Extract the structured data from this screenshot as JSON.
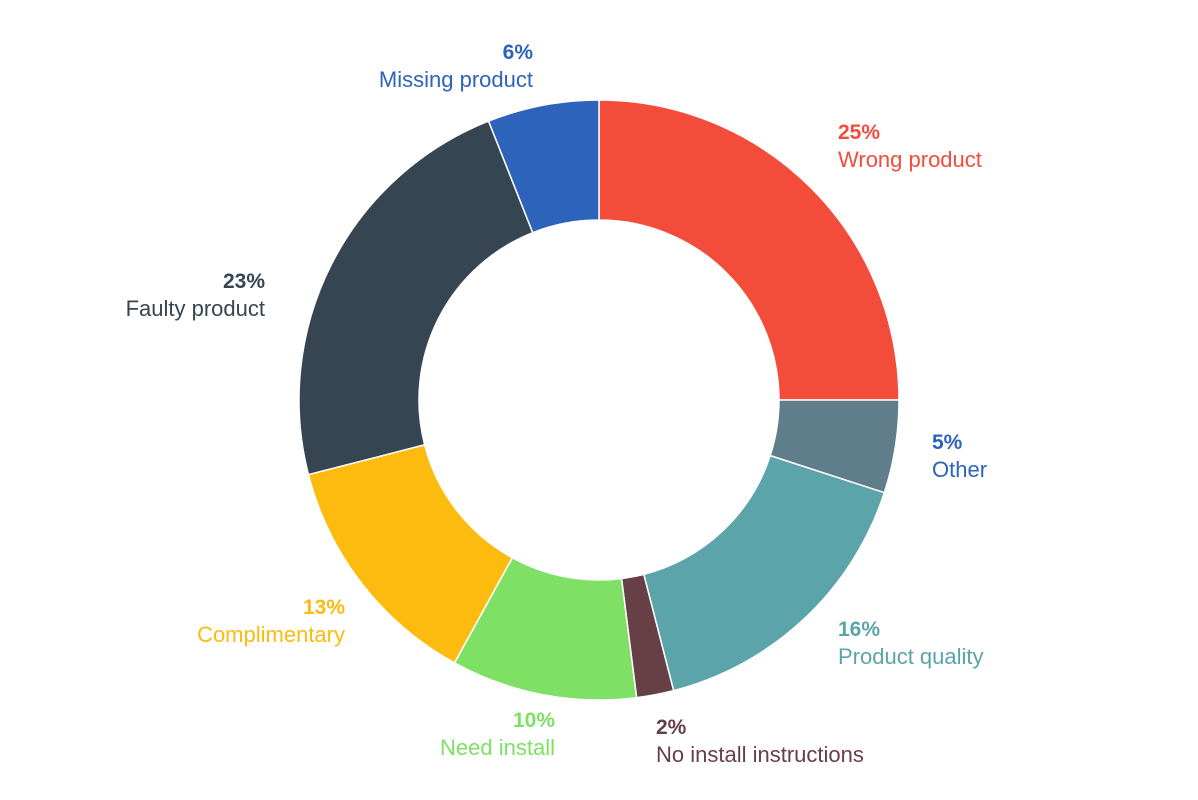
{
  "chart_data": {
    "type": "pie",
    "donut": true,
    "title": "",
    "start": "top, clockwise",
    "slices": [
      {
        "label": "Wrong product",
        "value": 25,
        "value_label": "25%",
        "color": "#F44C3B"
      },
      {
        "label": "Other",
        "value": 5,
        "value_label": "5%",
        "color": "#607D8B",
        "label_color": "#2E63BB"
      },
      {
        "label": "Product quality",
        "value": 16,
        "value_label": "16%",
        "color": "#5BA5AA"
      },
      {
        "label": "No install instructions",
        "value": 2,
        "value_label": "2%",
        "color": "#663F47"
      },
      {
        "label": "Need install",
        "value": 10,
        "value_label": "10%",
        "color": "#7EE065"
      },
      {
        "label": "Complimentary",
        "value": 13,
        "value_label": "13%",
        "color": "#FDBB0F"
      },
      {
        "label": "Faulty product",
        "value": 23,
        "value_label": "23%",
        "color": "#364552"
      },
      {
        "label": "Missing product",
        "value": 6,
        "value_label": "6%",
        "color": "#2E63BB"
      }
    ]
  }
}
